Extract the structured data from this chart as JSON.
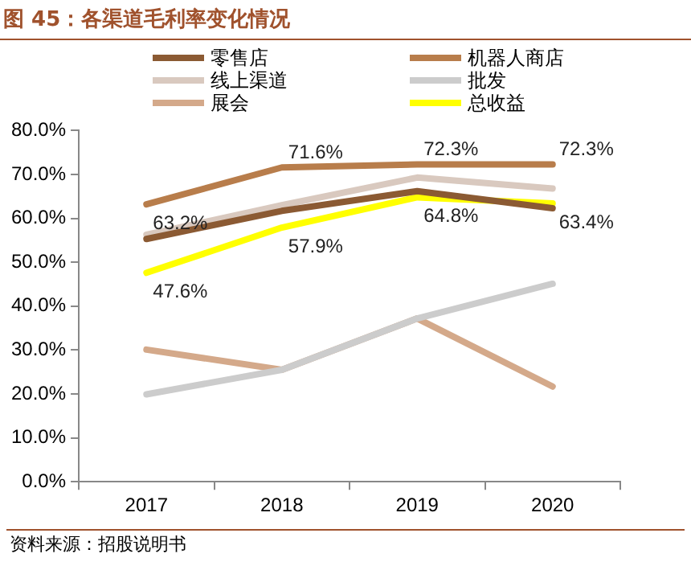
{
  "chart_data": {
    "type": "line",
    "title": "图 45：各渠道毛利率变化情况",
    "categories": [
      "2017",
      "2018",
      "2019",
      "2020"
    ],
    "series": [
      {
        "name": "零售店",
        "color": "#8b5a33",
        "values": [
          55.3,
          61.7,
          66.2,
          62.3
        ]
      },
      {
        "name": "机器人商店",
        "color": "#b87d4b",
        "values": [
          63.2,
          71.6,
          72.3,
          72.3
        ],
        "value_labels": [
          "63.2%",
          "71.6%",
          "72.3%",
          "72.3%"
        ]
      },
      {
        "name": "线上渠道",
        "color": "#d9c9bf",
        "values": [
          56.3,
          63.0,
          69.3,
          66.8
        ]
      },
      {
        "name": "批发",
        "color": "#cccccc",
        "values": [
          19.9,
          25.5,
          37.2,
          45.1
        ]
      },
      {
        "name": "展会",
        "color": "#d4a98a",
        "values": [
          30.1,
          25.5,
          37.2,
          21.7
        ]
      },
      {
        "name": "总收益",
        "color": "#ffff00",
        "values": [
          47.6,
          57.9,
          64.8,
          63.4
        ],
        "value_labels": [
          "47.6%",
          "57.9%",
          "64.8%",
          "63.4%"
        ]
      }
    ],
    "ylim": [
      0,
      80
    ],
    "yticks": [
      {
        "value": 0,
        "label": "0.0%"
      },
      {
        "value": 10,
        "label": "10.0%"
      },
      {
        "value": 20,
        "label": "20.0%"
      },
      {
        "value": 30,
        "label": "30.0%"
      },
      {
        "value": 40,
        "label": "40.0%"
      },
      {
        "value": 50,
        "label": "50.0%"
      },
      {
        "value": 60,
        "label": "60.0%"
      },
      {
        "value": 70,
        "label": "70.0%"
      },
      {
        "value": 80,
        "label": "80.0%"
      }
    ],
    "grid": false,
    "legend": "top",
    "marker": "none",
    "line_style": "solid",
    "annotations": [
      "资料来源：招股说明书"
    ]
  }
}
